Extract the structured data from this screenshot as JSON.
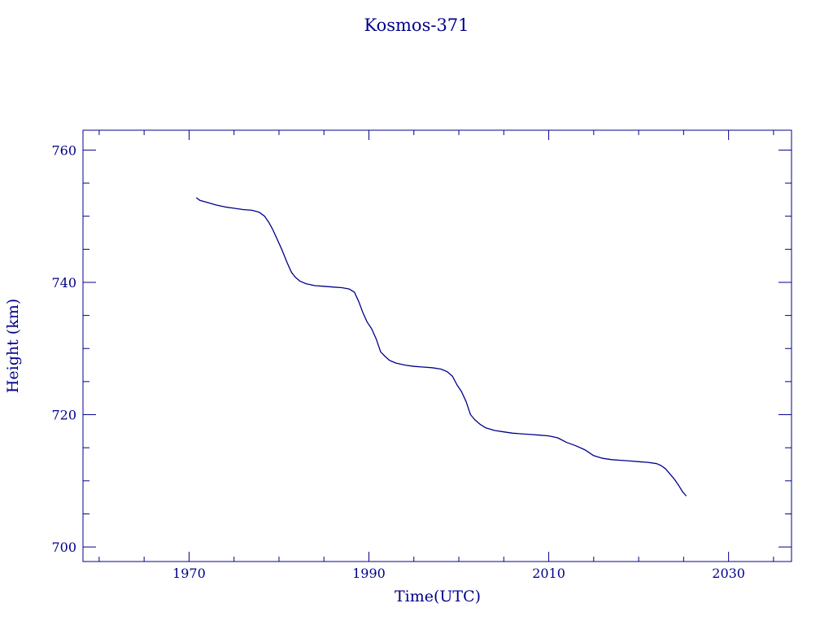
{
  "colors": {
    "ink": "#00008b"
  },
  "chart_data": {
    "type": "line",
    "title": "Kosmos-371",
    "xlabel": "Time(UTC)",
    "ylabel": "Height (km)",
    "xlim": [
      1958.2,
      2037.0
    ],
    "ylim": [
      697.8,
      763.0
    ],
    "x_ticks": [
      1970,
      1990,
      2010,
      2030
    ],
    "y_ticks": [
      700,
      720,
      740,
      760
    ],
    "x_minor_step": 5,
    "y_minor_step": 5,
    "grid": false,
    "legend": "none",
    "series": [
      {
        "x": [
          1970.8,
          1971.2,
          1972.0,
          1973.0,
          1974.0,
          1975.0,
          1976.0,
          1977.0,
          1977.8,
          1978.4,
          1978.9,
          1979.3,
          1979.8,
          1980.3,
          1980.9,
          1981.4,
          1981.8,
          1982.3,
          1983.0,
          1984.0,
          1985.0,
          1986.0,
          1987.0,
          1987.8,
          1988.4,
          1988.9,
          1989.3,
          1989.8,
          1990.3,
          1990.8,
          1991.3,
          1991.8,
          1992.3,
          1993.0,
          1994.0,
          1995.0,
          1996.0,
          1997.0,
          1998.0,
          1998.7,
          1999.3,
          1999.8,
          2000.3,
          2000.8,
          2001.3,
          2001.8,
          2002.4,
          2003.0,
          2004.0,
          2005.0,
          2006.0,
          2007.0,
          2008.0,
          2009.0,
          2010.0,
          2011.0,
          2012.0,
          2013.0,
          2014.0,
          2015.0,
          2016.0,
          2017.0,
          2018.0,
          2019.0,
          2020.0,
          2021.0,
          2022.0,
          2022.5,
          2023.0,
          2023.5,
          2024.0,
          2024.5,
          2024.9,
          2025.3
        ],
        "y": [
          752.8,
          752.4,
          752.1,
          751.7,
          751.4,
          751.2,
          751.0,
          750.9,
          750.6,
          750.0,
          749.0,
          748.0,
          746.5,
          745.0,
          743.0,
          741.5,
          740.8,
          740.2,
          739.8,
          739.5,
          739.4,
          739.3,
          739.2,
          739.0,
          738.5,
          737.0,
          735.5,
          734.0,
          733.0,
          731.5,
          729.5,
          728.8,
          728.2,
          727.8,
          727.5,
          727.3,
          727.2,
          727.1,
          726.9,
          726.5,
          725.8,
          724.5,
          723.5,
          722.0,
          720.0,
          719.2,
          718.5,
          718.0,
          717.6,
          717.4,
          717.2,
          717.1,
          717.0,
          716.9,
          716.8,
          716.5,
          715.8,
          715.3,
          714.7,
          713.8,
          713.4,
          713.2,
          713.1,
          713.0,
          712.9,
          712.8,
          712.6,
          712.3,
          711.8,
          711.0,
          710.2,
          709.2,
          708.3,
          707.7
        ]
      }
    ]
  }
}
